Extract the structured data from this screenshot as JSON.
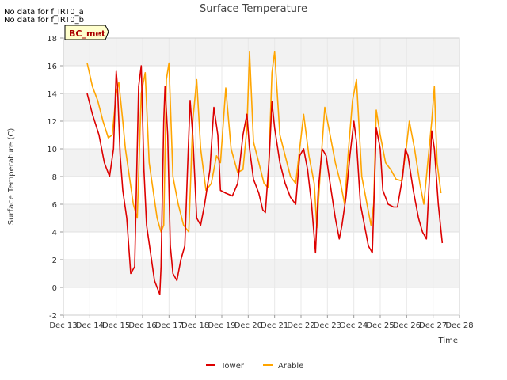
{
  "notes": [
    "No data for f_IRT0_a",
    "No data for f_IRT0_b"
  ],
  "station_label": "BC_met",
  "chart_data": {
    "type": "line",
    "title": "Surface Temperature",
    "xlabel": "Time",
    "ylabel": "Surface Temperature (C)",
    "xlim": [
      13,
      28
    ],
    "ylim": [
      -2,
      18
    ],
    "x_ticks": [
      13,
      14,
      15,
      16,
      17,
      18,
      19,
      20,
      21,
      22,
      23,
      24,
      25,
      26,
      27,
      28
    ],
    "x_tick_labels": [
      "Dec 13",
      "Dec 14",
      "Dec 15",
      "Dec 16",
      "Dec 17",
      "Dec 18",
      "Dec 19",
      "Dec 20",
      "Dec 21",
      "Dec 22",
      "Dec 23",
      "Dec 24",
      "Dec 25",
      "Dec 26",
      "Dec 27",
      "Dec 28"
    ],
    "y_ticks": [
      -2,
      0,
      2,
      4,
      6,
      8,
      10,
      12,
      14,
      16,
      18
    ],
    "grid": true,
    "legend_position": "bottom-center",
    "series": [
      {
        "name": "Tower",
        "color": "#dd0000",
        "x": [
          13.9,
          14.1,
          14.35,
          14.55,
          14.75,
          14.9,
          15.0,
          15.05,
          15.15,
          15.25,
          15.4,
          15.55,
          15.7,
          15.85,
          15.95,
          16.05,
          16.15,
          16.3,
          16.45,
          16.55,
          16.65,
          16.7,
          16.8,
          16.85,
          16.95,
          17.05,
          17.15,
          17.3,
          17.45,
          17.6,
          17.7,
          17.8,
          17.9,
          18.05,
          18.2,
          18.35,
          18.55,
          18.7,
          18.85,
          18.95,
          19.15,
          19.4,
          19.6,
          19.8,
          19.95,
          20.05,
          20.2,
          20.4,
          20.55,
          20.65,
          20.8,
          20.9,
          21.0,
          21.2,
          21.4,
          21.6,
          21.8,
          21.95,
          22.1,
          22.25,
          22.4,
          22.55,
          22.65,
          22.8,
          22.95,
          23.1,
          23.3,
          23.45,
          23.55,
          23.7,
          23.85,
          24.0,
          24.1,
          24.25,
          24.45,
          24.55,
          24.7,
          24.85,
          25.0,
          25.1,
          25.3,
          25.5,
          25.65,
          25.85,
          25.95,
          26.05,
          26.25,
          26.45,
          26.6,
          26.75,
          26.85,
          26.95,
          27.05,
          27.2,
          27.35
        ],
        "values": [
          14.0,
          12.5,
          11.0,
          9.0,
          8.0,
          10.0,
          15.6,
          14.5,
          9.5,
          7.0,
          5.0,
          1.0,
          1.5,
          14.5,
          16.0,
          8.5,
          4.5,
          2.5,
          0.5,
          0.0,
          -0.5,
          1.5,
          12.0,
          14.5,
          11.0,
          3.0,
          1.0,
          0.5,
          2.0,
          3.0,
          8.5,
          13.5,
          11.0,
          5.0,
          4.5,
          6.0,
          8.5,
          13.0,
          11.0,
          7.0,
          6.8,
          6.6,
          7.5,
          11.0,
          12.5,
          10.0,
          7.8,
          6.8,
          5.6,
          5.4,
          9.5,
          13.4,
          11.5,
          9.0,
          7.5,
          6.5,
          6.0,
          9.5,
          10.0,
          8.5,
          6.0,
          2.5,
          7.0,
          10.0,
          9.5,
          7.5,
          5.0,
          3.5,
          4.5,
          6.5,
          9.5,
          12.0,
          10.5,
          6.0,
          4.0,
          3.0,
          2.5,
          11.5,
          10.0,
          7.0,
          6.0,
          5.8,
          5.8,
          8.0,
          10.0,
          9.5,
          7.0,
          5.0,
          4.0,
          3.5,
          7.5,
          11.3,
          10.0,
          6.0,
          3.2
        ]
      },
      {
        "name": "Arable",
        "color": "#ffa500",
        "x": [
          13.9,
          14.1,
          14.3,
          14.5,
          14.7,
          14.85,
          15.0,
          15.1,
          15.25,
          15.35,
          15.5,
          15.65,
          15.8,
          15.95,
          16.1,
          16.25,
          16.4,
          16.55,
          16.7,
          16.8,
          16.9,
          17.0,
          17.15,
          17.35,
          17.55,
          17.75,
          17.9,
          18.05,
          18.2,
          18.4,
          18.6,
          18.8,
          18.95,
          19.15,
          19.35,
          19.6,
          19.8,
          19.95,
          20.05,
          20.2,
          20.4,
          20.6,
          20.75,
          20.9,
          21.0,
          21.2,
          21.4,
          21.6,
          21.8,
          21.95,
          22.1,
          22.3,
          22.5,
          22.6,
          22.75,
          22.9,
          23.1,
          23.3,
          23.5,
          23.65,
          23.8,
          23.95,
          24.1,
          24.3,
          24.5,
          24.65,
          24.75,
          24.85,
          25.0,
          25.2,
          25.4,
          25.6,
          25.8,
          25.95,
          26.1,
          26.3,
          26.5,
          26.65,
          26.8,
          26.95,
          27.05,
          27.15,
          27.3
        ],
        "values": [
          16.2,
          14.5,
          13.5,
          12.0,
          10.8,
          11.0,
          14.0,
          14.8,
          12.0,
          10.0,
          8.0,
          6.0,
          5.0,
          14.0,
          15.5,
          9.0,
          7.0,
          5.0,
          4.0,
          4.5,
          15.0,
          16.2,
          8.0,
          6.0,
          4.5,
          4.0,
          12.0,
          15.0,
          10.0,
          7.0,
          7.5,
          9.5,
          9.0,
          14.4,
          10.0,
          8.3,
          8.5,
          11.5,
          17.0,
          10.5,
          9.0,
          7.5,
          7.2,
          15.5,
          17.0,
          11.0,
          9.5,
          8.0,
          7.5,
          10.0,
          12.5,
          9.5,
          7.5,
          4.3,
          9.0,
          13.0,
          11.0,
          9.0,
          7.5,
          6.0,
          10.0,
          13.5,
          15.0,
          8.0,
          6.0,
          4.5,
          6.0,
          12.8,
          11.0,
          9.0,
          8.5,
          7.8,
          7.7,
          9.5,
          12.0,
          10.0,
          7.5,
          6.0,
          9.0,
          12.0,
          14.5,
          9.0,
          6.8
        ]
      }
    ]
  }
}
